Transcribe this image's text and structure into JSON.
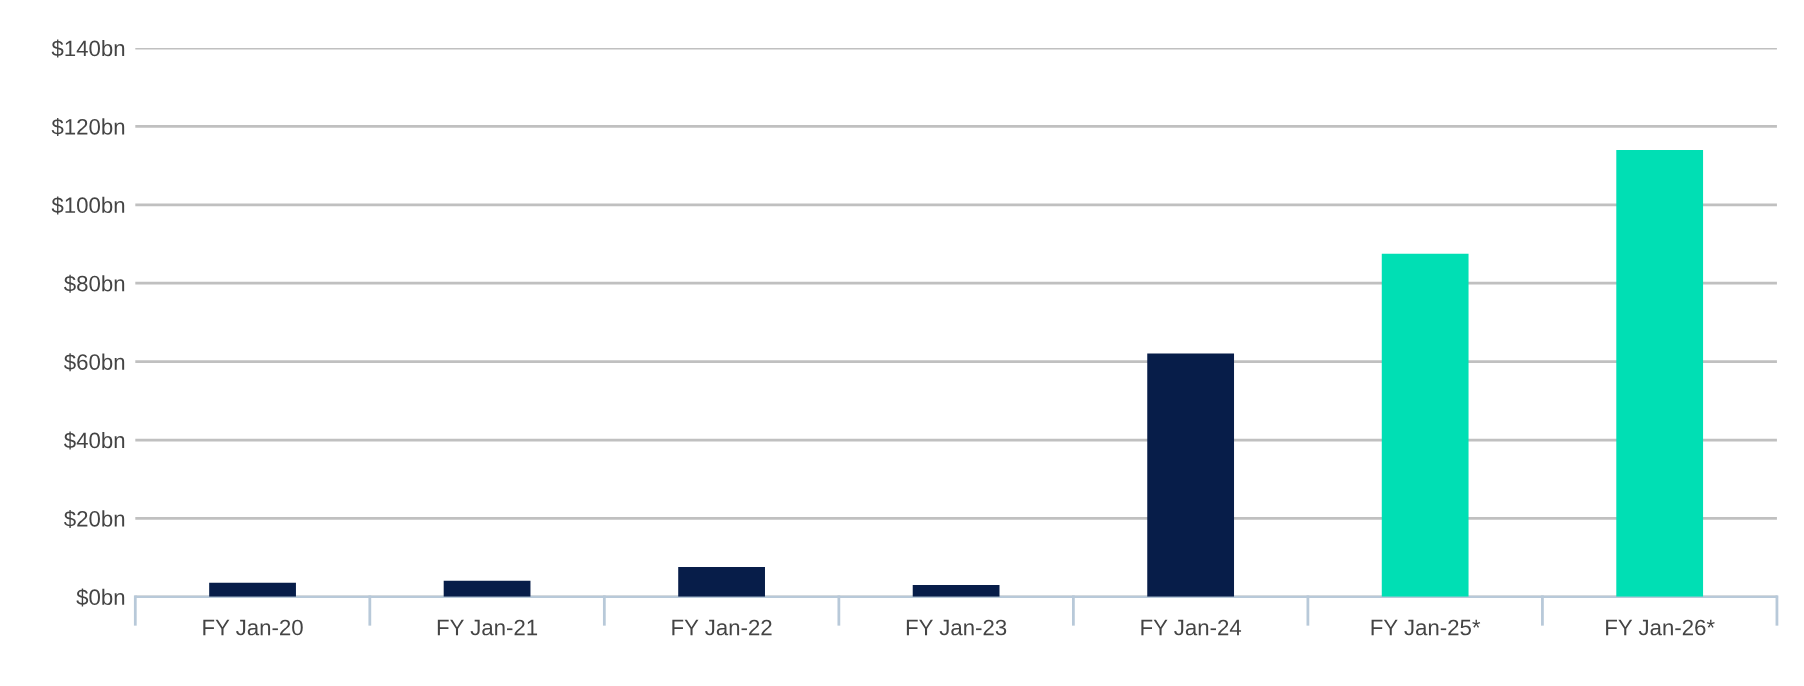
{
  "chart_data": {
    "type": "bar",
    "categories": [
      "FY Jan-20",
      "FY Jan-21",
      "FY Jan-22",
      "FY Jan-23",
      "FY Jan-24",
      "FY Jan-25*",
      "FY Jan-26*"
    ],
    "values": [
      3.6,
      4.1,
      7.6,
      3.0,
      62.1,
      87.5,
      114
    ],
    "colors": [
      "#071d49",
      "#071d49",
      "#071d49",
      "#071d49",
      "#071d49",
      "#00dfb4",
      "#00dfb4"
    ],
    "ylim": [
      0,
      140
    ],
    "yticks": [
      {
        "value": 0,
        "label": "$0bn"
      },
      {
        "value": 20,
        "label": "$20bn"
      },
      {
        "value": 40,
        "label": "$40bn"
      },
      {
        "value": 60,
        "label": "$60bn"
      },
      {
        "value": 80,
        "label": "$80bn"
      },
      {
        "value": 100,
        "label": "$100bn"
      },
      {
        "value": 120,
        "label": "$120bn"
      },
      {
        "value": 140,
        "label": "$140bn"
      }
    ],
    "grid": "y",
    "legend": false
  }
}
